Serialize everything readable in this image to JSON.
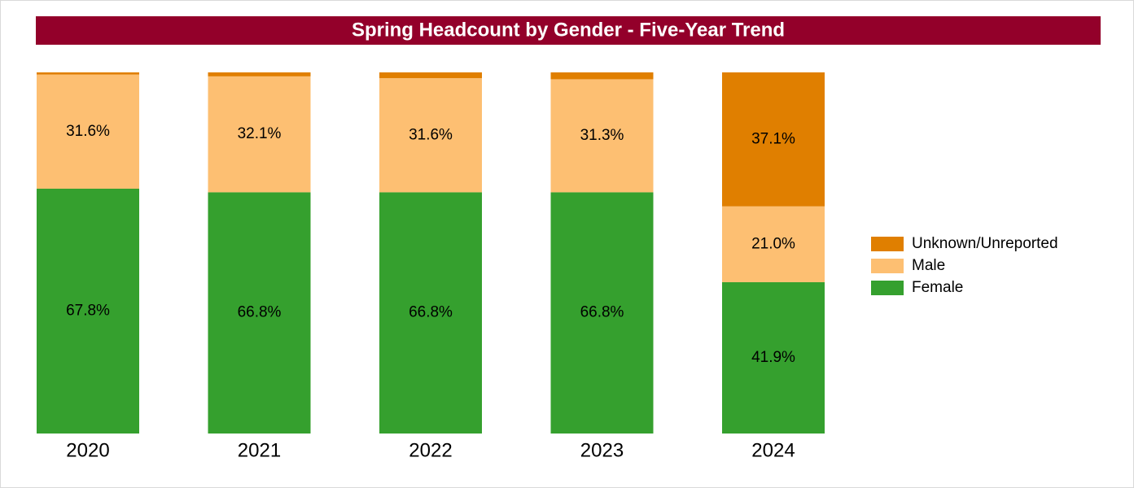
{
  "chart_data": {
    "type": "stacked_bar",
    "title": "Spring Headcount by Gender - Five-Year Trend",
    "categories": [
      "2020",
      "2021",
      "2022",
      "2023",
      "2024"
    ],
    "ylim": [
      0,
      100
    ],
    "legend": "right",
    "series": [
      {
        "name": "Female",
        "color": "#35a02e",
        "values": [
          67.8,
          66.8,
          66.8,
          66.8,
          41.9
        ],
        "value_labels": [
          "67.8%",
          "66.8%",
          "66.8%",
          "66.8%",
          "41.9%"
        ]
      },
      {
        "name": "Male",
        "color": "#fdbf72",
        "values": [
          31.6,
          32.1,
          31.6,
          31.3,
          21.0
        ],
        "value_labels": [
          "31.6%",
          "32.1%",
          "31.6%",
          "31.3%",
          "21.0%"
        ]
      },
      {
        "name": "Unknown/Unreported",
        "color": "#e07f00",
        "values": [
          0.6,
          1.1,
          1.6,
          1.9,
          37.1
        ],
        "value_labels": [
          null,
          null,
          null,
          null,
          "37.1%"
        ]
      }
    ]
  }
}
